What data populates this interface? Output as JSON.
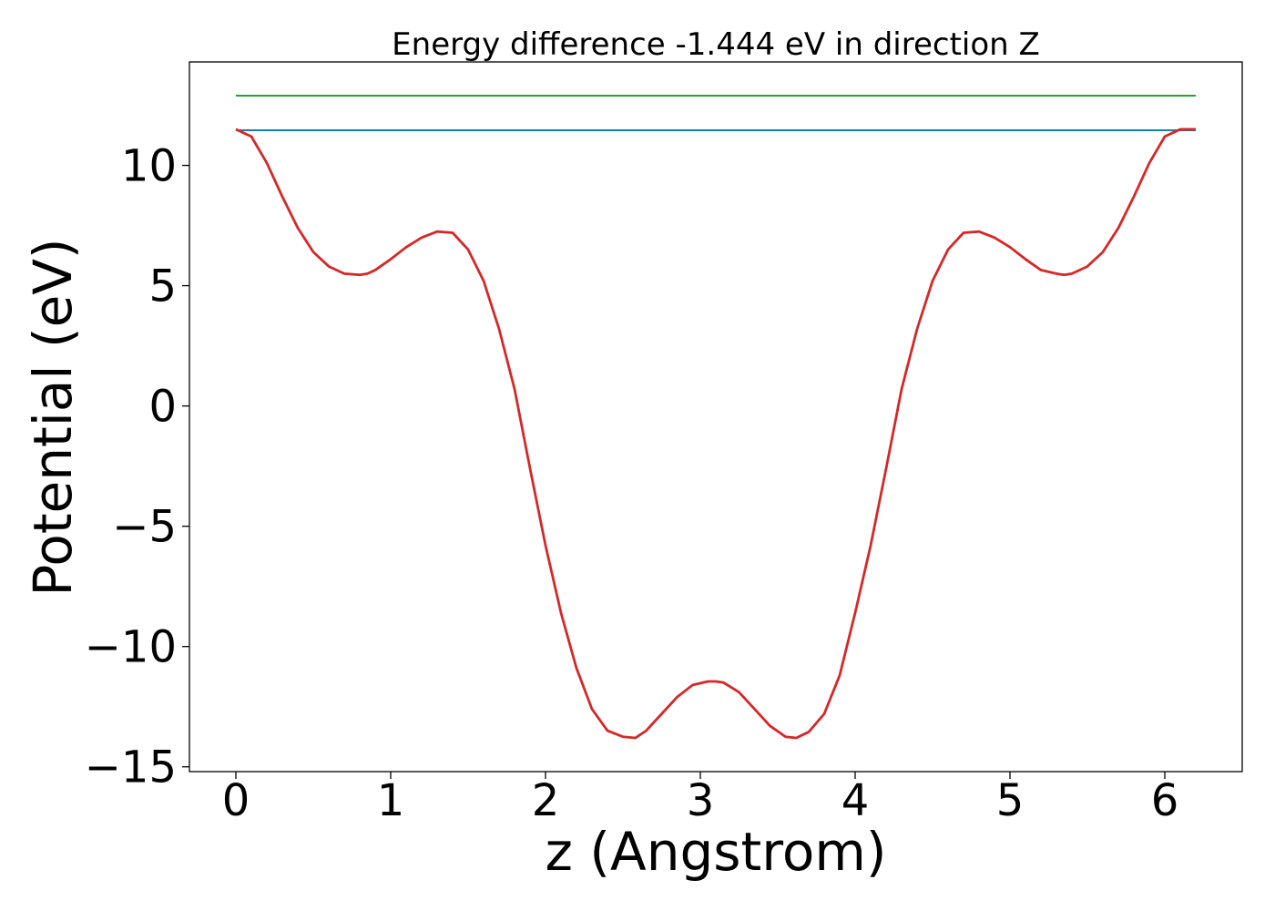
{
  "chart_data": {
    "type": "line",
    "title": "Energy difference -1.444 eV in direction Z",
    "xlabel": "z (Angstrom)",
    "ylabel": "Potential (eV)",
    "xlim": [
      -0.3,
      6.5
    ],
    "ylim": [
      -15.2,
      14.3
    ],
    "xticks": [
      0,
      1,
      2,
      3,
      4,
      5,
      6
    ],
    "xtick_labels": [
      "0",
      "1",
      "2",
      "3",
      "4",
      "5",
      "6"
    ],
    "yticks": [
      -15,
      -10,
      -5,
      0,
      5,
      10
    ],
    "ytick_labels": [
      "−15",
      "−10",
      "−5",
      "0",
      "5",
      "10"
    ],
    "grid": false,
    "legend": "none",
    "series": [
      {
        "color": "#2ca02c",
        "x": [
          0,
          6.2
        ],
        "y": [
          12.9,
          12.9
        ]
      },
      {
        "color": "#1f77b4",
        "x": [
          0,
          6.2
        ],
        "y": [
          11.46,
          11.46
        ]
      },
      {
        "color": "#d62728",
        "x": [
          0,
          0.1,
          0.2,
          0.3,
          0.4,
          0.5,
          0.6,
          0.7,
          0.8,
          0.85,
          0.9,
          1.0,
          1.1,
          1.2,
          1.3,
          1.4,
          1.5,
          1.6,
          1.7,
          1.8,
          1.9,
          2.0,
          2.1,
          2.2,
          2.3,
          2.4,
          2.5,
          2.58,
          2.65,
          2.75,
          2.85,
          2.95,
          3.05,
          3.1,
          3.15,
          3.25,
          3.35,
          3.45,
          3.55,
          3.62,
          3.7,
          3.8,
          3.9,
          4.0,
          4.1,
          4.2,
          4.3,
          4.4,
          4.5,
          4.6,
          4.7,
          4.8,
          4.9,
          5.0,
          5.1,
          5.2,
          5.3,
          5.35,
          5.4,
          5.5,
          5.6,
          5.7,
          5.8,
          5.9,
          6.0,
          6.1,
          6.2
        ],
        "y": [
          11.5,
          11.2,
          10.1,
          8.7,
          7.4,
          6.4,
          5.8,
          5.5,
          5.45,
          5.5,
          5.65,
          6.1,
          6.6,
          7.0,
          7.25,
          7.2,
          6.5,
          5.2,
          3.2,
          0.7,
          -2.6,
          -5.8,
          -8.6,
          -10.9,
          -12.6,
          -13.5,
          -13.75,
          -13.8,
          -13.5,
          -12.8,
          -12.1,
          -11.6,
          -11.45,
          -11.45,
          -11.5,
          -11.9,
          -12.6,
          -13.3,
          -13.75,
          -13.8,
          -13.55,
          -12.8,
          -11.2,
          -8.6,
          -5.8,
          -2.6,
          0.7,
          3.2,
          5.2,
          6.5,
          7.2,
          7.25,
          7.0,
          6.6,
          6.1,
          5.65,
          5.5,
          5.45,
          5.5,
          5.8,
          6.4,
          7.4,
          8.7,
          10.1,
          11.2,
          11.5,
          11.5
        ]
      }
    ]
  }
}
